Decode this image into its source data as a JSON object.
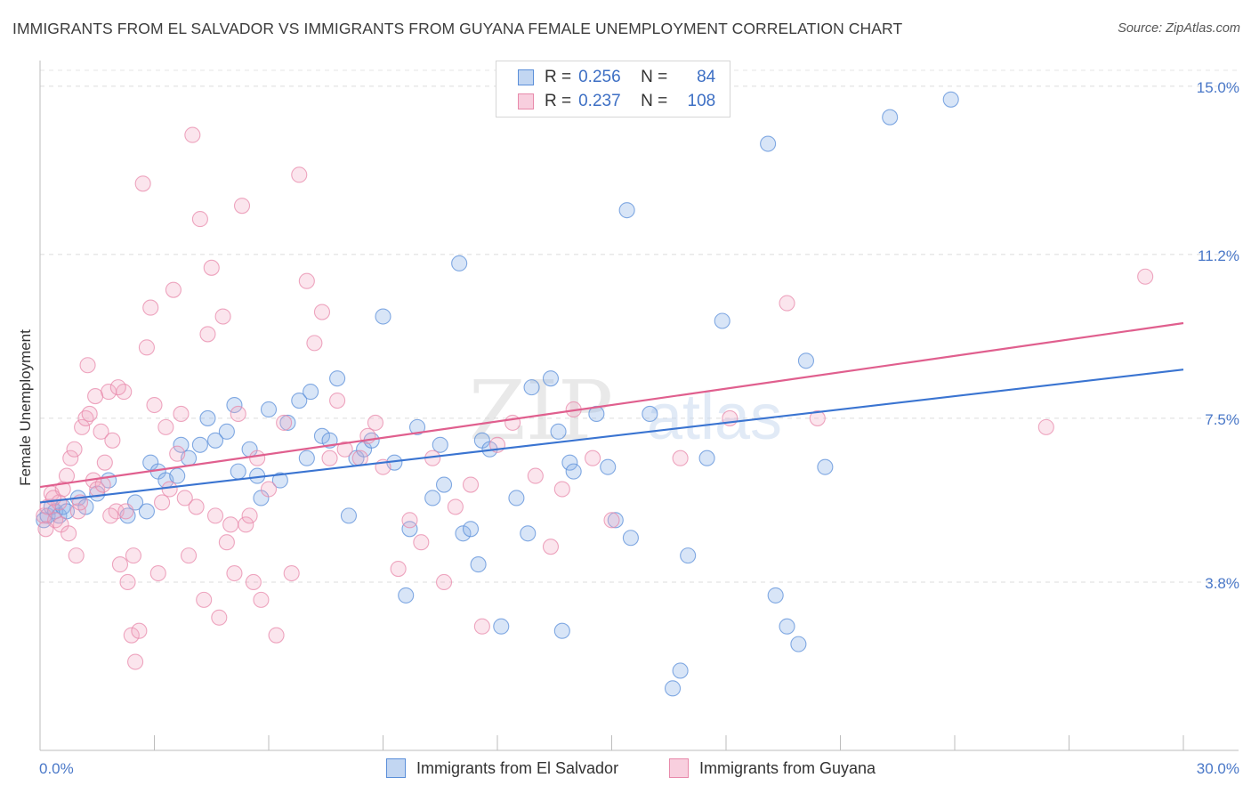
{
  "title": "IMMIGRANTS FROM EL SALVADOR VS IMMIGRANTS FROM GUYANA FEMALE UNEMPLOYMENT CORRELATION CHART",
  "source": "Source: ZipAtlas.com",
  "watermark": {
    "zip": "ZIP",
    "atlas": "atlas"
  },
  "legend": {
    "r_label": "R =",
    "n_label": "N =",
    "rows": [
      {
        "r": "0.256",
        "n": "84",
        "color": "#8fb4e8"
      },
      {
        "r": "0.237",
        "n": "108",
        "color": "#f2a8c2"
      }
    ]
  },
  "bottom_legend": [
    {
      "label": "Immigrants from El Salvador",
      "color": "#8fb4e8"
    },
    {
      "label": "Immigrants from Guyana",
      "color": "#f2a8c2"
    }
  ],
  "chart_data": {
    "type": "scatter",
    "title": "IMMIGRANTS FROM EL SALVADOR VS IMMIGRANTS FROM GUYANA FEMALE UNEMPLOYMENT CORRELATION CHART",
    "xlabel": "",
    "ylabel": "Female Unemployment",
    "xlim": [
      0,
      30
    ],
    "ylim": [
      0,
      15.5
    ],
    "x_tick_labels": [
      "0.0%",
      "30.0%"
    ],
    "y_ticks": [
      3.8,
      7.5,
      11.2,
      15.0
    ],
    "y_tick_labels": [
      "3.8%",
      "7.5%",
      "11.2%",
      "15.0%"
    ],
    "series": [
      {
        "name": "Immigrants from El Salvador",
        "color": "#5b8fd9",
        "fill": "rgba(143,180,232,0.35)",
        "line_color": "#3a74d1",
        "trend": [
          [
            0,
            5.6
          ],
          [
            30,
            8.6
          ]
        ],
        "points": [
          [
            0.1,
            5.2
          ],
          [
            0.2,
            5.3
          ],
          [
            0.3,
            5.5
          ],
          [
            0.4,
            5.4
          ],
          [
            0.5,
            5.3
          ],
          [
            0.6,
            5.5
          ],
          [
            0.7,
            5.4
          ],
          [
            1.0,
            5.7
          ],
          [
            1.2,
            5.5
          ],
          [
            1.5,
            5.8
          ],
          [
            1.8,
            6.1
          ],
          [
            2.3,
            5.3
          ],
          [
            2.5,
            5.6
          ],
          [
            2.8,
            5.4
          ],
          [
            2.9,
            6.5
          ],
          [
            3.1,
            6.3
          ],
          [
            3.3,
            6.1
          ],
          [
            3.6,
            6.2
          ],
          [
            3.7,
            6.9
          ],
          [
            3.9,
            6.6
          ],
          [
            4.2,
            6.9
          ],
          [
            4.4,
            7.5
          ],
          [
            4.6,
            7.0
          ],
          [
            4.9,
            7.2
          ],
          [
            5.1,
            7.8
          ],
          [
            5.2,
            6.3
          ],
          [
            5.5,
            6.8
          ],
          [
            5.7,
            6.2
          ],
          [
            5.8,
            5.7
          ],
          [
            6.0,
            7.7
          ],
          [
            6.3,
            6.1
          ],
          [
            6.5,
            7.4
          ],
          [
            6.8,
            7.9
          ],
          [
            7.0,
            6.6
          ],
          [
            7.1,
            8.1
          ],
          [
            7.4,
            7.1
          ],
          [
            7.6,
            7.0
          ],
          [
            7.8,
            8.4
          ],
          [
            8.1,
            5.3
          ],
          [
            8.3,
            6.6
          ],
          [
            8.5,
            6.8
          ],
          [
            8.7,
            7.0
          ],
          [
            9.0,
            9.8
          ],
          [
            9.3,
            6.5
          ],
          [
            9.6,
            3.5
          ],
          [
            9.7,
            5.0
          ],
          [
            9.9,
            7.3
          ],
          [
            10.3,
            5.7
          ],
          [
            10.5,
            6.9
          ],
          [
            10.6,
            6.0
          ],
          [
            11.0,
            11.0
          ],
          [
            11.1,
            4.9
          ],
          [
            11.3,
            5.0
          ],
          [
            11.5,
            4.2
          ],
          [
            11.6,
            7.0
          ],
          [
            11.8,
            6.8
          ],
          [
            12.1,
            2.8
          ],
          [
            12.5,
            5.7
          ],
          [
            12.8,
            4.9
          ],
          [
            12.9,
            8.2
          ],
          [
            13.4,
            8.4
          ],
          [
            13.6,
            7.2
          ],
          [
            13.7,
            2.7
          ],
          [
            13.9,
            6.5
          ],
          [
            14.0,
            6.3
          ],
          [
            14.6,
            7.6
          ],
          [
            14.9,
            6.4
          ],
          [
            15.1,
            5.2
          ],
          [
            15.4,
            12.2
          ],
          [
            15.5,
            4.8
          ],
          [
            16.0,
            7.6
          ],
          [
            16.6,
            1.4
          ],
          [
            16.8,
            1.8
          ],
          [
            17.0,
            4.4
          ],
          [
            17.5,
            6.6
          ],
          [
            17.9,
            9.7
          ],
          [
            19.1,
            13.7
          ],
          [
            19.3,
            3.5
          ],
          [
            19.6,
            2.8
          ],
          [
            19.9,
            2.4
          ],
          [
            20.1,
            8.8
          ],
          [
            20.6,
            6.4
          ],
          [
            22.3,
            14.3
          ],
          [
            23.9,
            14.7
          ]
        ]
      },
      {
        "name": "Immigrants from Guyana",
        "color": "#e88aab",
        "fill": "rgba(242,168,194,0.30)",
        "line_color": "#e05f8e",
        "trend": [
          [
            0,
            5.95
          ],
          [
            30,
            9.65
          ]
        ],
        "points": [
          [
            0.1,
            5.3
          ],
          [
            0.2,
            5.5
          ],
          [
            0.3,
            5.8
          ],
          [
            0.4,
            5.2
          ],
          [
            0.5,
            5.6
          ],
          [
            0.6,
            5.9
          ],
          [
            0.7,
            6.2
          ],
          [
            0.8,
            6.6
          ],
          [
            0.9,
            6.8
          ],
          [
            1.0,
            5.4
          ],
          [
            1.1,
            7.3
          ],
          [
            1.2,
            7.5
          ],
          [
            1.3,
            7.6
          ],
          [
            1.4,
            6.1
          ],
          [
            1.5,
            5.9
          ],
          [
            1.6,
            7.2
          ],
          [
            1.7,
            6.5
          ],
          [
            1.8,
            8.1
          ],
          [
            1.9,
            7.0
          ],
          [
            2.0,
            5.4
          ],
          [
            2.1,
            4.2
          ],
          [
            2.2,
            8.1
          ],
          [
            2.3,
            3.8
          ],
          [
            2.4,
            2.6
          ],
          [
            2.5,
            2.0
          ],
          [
            2.6,
            2.7
          ],
          [
            2.7,
            12.8
          ],
          [
            2.8,
            9.1
          ],
          [
            2.9,
            10.0
          ],
          [
            3.0,
            7.8
          ],
          [
            3.1,
            4.0
          ],
          [
            3.2,
            5.6
          ],
          [
            3.3,
            7.3
          ],
          [
            3.4,
            5.9
          ],
          [
            3.5,
            10.4
          ],
          [
            3.6,
            6.7
          ],
          [
            3.7,
            7.6
          ],
          [
            3.8,
            5.7
          ],
          [
            3.9,
            4.4
          ],
          [
            4.0,
            13.9
          ],
          [
            4.1,
            5.5
          ],
          [
            4.2,
            12.0
          ],
          [
            4.3,
            3.4
          ],
          [
            4.4,
            9.4
          ],
          [
            4.5,
            10.9
          ],
          [
            4.6,
            5.3
          ],
          [
            4.7,
            3.0
          ],
          [
            4.8,
            9.8
          ],
          [
            4.9,
            4.7
          ],
          [
            5.0,
            5.1
          ],
          [
            5.1,
            4.0
          ],
          [
            5.2,
            7.6
          ],
          [
            5.3,
            12.3
          ],
          [
            5.4,
            5.1
          ],
          [
            5.5,
            5.3
          ],
          [
            5.6,
            3.8
          ],
          [
            5.7,
            6.6
          ],
          [
            5.8,
            3.4
          ],
          [
            6.0,
            5.9
          ],
          [
            6.2,
            2.6
          ],
          [
            6.4,
            7.4
          ],
          [
            6.6,
            4.0
          ],
          [
            6.8,
            13.0
          ],
          [
            7.0,
            10.6
          ],
          [
            7.2,
            9.2
          ],
          [
            7.4,
            9.9
          ],
          [
            7.6,
            6.6
          ],
          [
            7.8,
            7.9
          ],
          [
            8.0,
            6.8
          ],
          [
            8.4,
            6.6
          ],
          [
            8.6,
            7.1
          ],
          [
            8.8,
            7.4
          ],
          [
            9.0,
            6.4
          ],
          [
            9.4,
            4.1
          ],
          [
            9.7,
            5.2
          ],
          [
            10.0,
            4.7
          ],
          [
            10.3,
            6.6
          ],
          [
            10.6,
            3.8
          ],
          [
            10.9,
            5.5
          ],
          [
            11.3,
            6.0
          ],
          [
            11.6,
            2.8
          ],
          [
            12.0,
            6.9
          ],
          [
            12.4,
            7.4
          ],
          [
            13.0,
            6.2
          ],
          [
            13.4,
            4.6
          ],
          [
            13.7,
            5.9
          ],
          [
            14.0,
            7.7
          ],
          [
            14.5,
            6.6
          ],
          [
            15.0,
            5.2
          ],
          [
            16.8,
            6.6
          ],
          [
            18.1,
            7.5
          ],
          [
            19.6,
            10.1
          ],
          [
            20.4,
            7.5
          ],
          [
            26.4,
            7.3
          ],
          [
            29.0,
            10.7
          ],
          [
            0.15,
            5.0
          ],
          [
            0.35,
            5.7
          ],
          [
            0.55,
            5.1
          ],
          [
            0.75,
            4.9
          ],
          [
            0.95,
            4.4
          ],
          [
            1.05,
            5.6
          ],
          [
            1.25,
            8.7
          ],
          [
            1.45,
            8.0
          ],
          [
            1.65,
            6.0
          ],
          [
            1.85,
            5.3
          ],
          [
            2.05,
            8.2
          ],
          [
            2.25,
            5.4
          ],
          [
            2.45,
            4.4
          ]
        ]
      }
    ]
  }
}
